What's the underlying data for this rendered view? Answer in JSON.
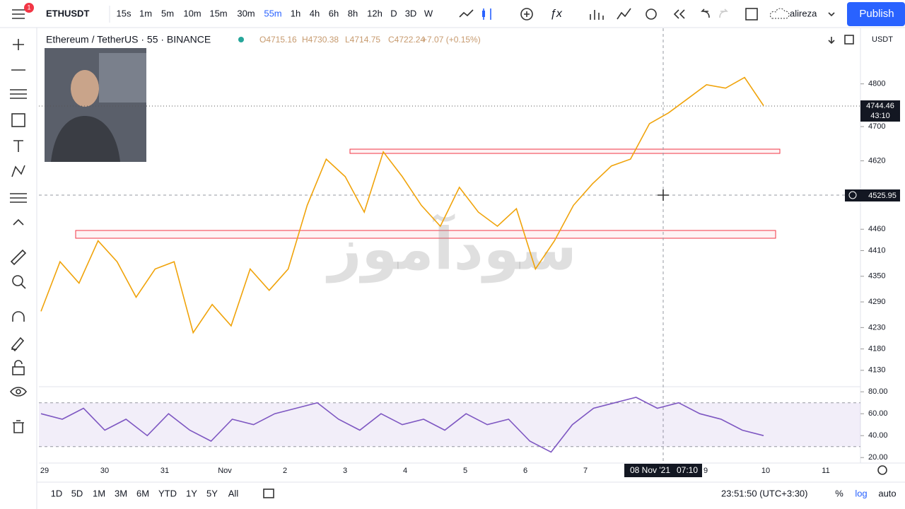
{
  "toolbar": {
    "notifications": "1",
    "symbol": "ETHUSDT",
    "intervals": [
      "15s",
      "1m",
      "5m",
      "10m",
      "15m",
      "30m",
      "55m",
      "1h",
      "4h",
      "6h",
      "8h",
      "12h",
      "D",
      "3D",
      "W"
    ],
    "active_interval": "55m",
    "user": "alireza",
    "publish": "Publish"
  },
  "legend": {
    "title": "Ethereum / TetherUS · 55 · BINANCE",
    "ohlc": [
      "O4715.16",
      "H4730.38",
      "L4714.75",
      "C4722.24",
      "+7.07 (+0.15%)"
    ]
  },
  "watermark": "سودآموز",
  "price_chart": {
    "type": "line",
    "color": "#f0a30a",
    "currency": "USDT",
    "values": [
      4268,
      4384,
      4334,
      4433,
      4384,
      4301,
      4367,
      4384,
      4218,
      4284,
      4234,
      4367,
      4317,
      4367,
      4516,
      4624,
      4583,
      4500,
      4641,
      4583,
      4516,
      4467,
      4558,
      4500,
      4467,
      4508,
      4367,
      4433,
      4516,
      4566,
      4608,
      4624,
      4707,
      4732,
      4765,
      4798,
      4790,
      4815,
      4749
    ],
    "ylim": [
      4095,
      4930
    ],
    "yticks": [
      4130,
      4180,
      4230,
      4290,
      4350,
      4410,
      4460,
      4620,
      4700,
      4800
    ],
    "last_price": "4744.46",
    "countdown": "43:10",
    "crosshair_price": "4525.95"
  },
  "rsi_chart": {
    "type": "line",
    "color": "#7e57c2",
    "values": [
      60,
      55,
      65,
      45,
      55,
      40,
      60,
      45,
      35,
      55,
      50,
      60,
      65,
      70,
      55,
      45,
      60,
      50,
      55,
      45,
      60,
      50,
      55,
      35,
      25,
      50,
      65,
      70,
      75,
      65,
      70,
      60,
      55,
      45,
      40
    ],
    "ylim": [
      15,
      84
    ],
    "bands": [
      30,
      70
    ],
    "yticks": [
      {
        "value": 20,
        "label": "20.00"
      },
      {
        "value": 40,
        "label": "40.00"
      },
      {
        "value": 60,
        "label": "60.00"
      },
      {
        "value": 80,
        "label": "80.00"
      }
    ]
  },
  "time_axis": {
    "categories": [
      "29",
      "30",
      "31",
      "Nov",
      "2",
      "3",
      "4",
      "5",
      "6",
      "7",
      null,
      "9",
      "10",
      "11"
    ],
    "crosshair_date": "08 Nov '21",
    "crosshair_time": "07:10"
  },
  "bottom_bar": {
    "ranges": [
      "1D",
      "5D",
      "1M",
      "3M",
      "6M",
      "YTD",
      "1Y",
      "5Y",
      "All"
    ],
    "clock": "23:51:50 (UTC+3:30)",
    "percent": "%",
    "log": "log",
    "auto": "auto"
  }
}
